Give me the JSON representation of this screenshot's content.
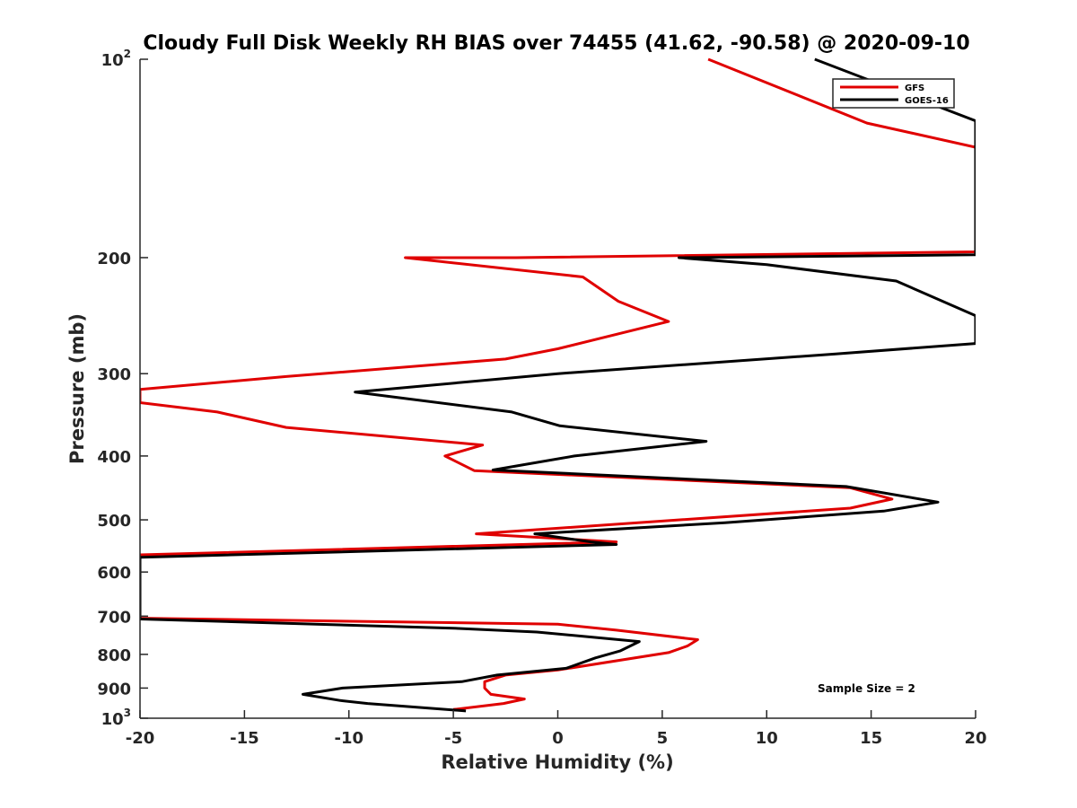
{
  "chart_data": {
    "type": "line",
    "title": "Cloudy Full Disk Weekly RH BIAS over 74455 (41.62, -90.58) @ 2020-09-10",
    "xlabel": "Relative Humidity (%)",
    "ylabel": "Pressure (mb)",
    "xlim": [
      -20,
      20
    ],
    "ylim": [
      100,
      1000
    ],
    "y_scale": "log",
    "y_reversed": true,
    "x_ticks": [
      {
        "value": -20,
        "label": "-20"
      },
      {
        "value": -15,
        "label": "-15"
      },
      {
        "value": -10,
        "label": "-10"
      },
      {
        "value": -5,
        "label": "-5"
      },
      {
        "value": 0,
        "label": "0"
      },
      {
        "value": 5,
        "label": "5"
      },
      {
        "value": 10,
        "label": "10"
      },
      {
        "value": 15,
        "label": "15"
      },
      {
        "value": 20,
        "label": "20"
      }
    ],
    "y_ticks": [
      {
        "value": 100,
        "base": "10",
        "exp": "2"
      },
      {
        "value": 200,
        "base": "200",
        "exp": ""
      },
      {
        "value": 300,
        "base": "300",
        "exp": ""
      },
      {
        "value": 400,
        "base": "400",
        "exp": ""
      },
      {
        "value": 500,
        "base": "500",
        "exp": ""
      },
      {
        "value": 600,
        "base": "600",
        "exp": ""
      },
      {
        "value": 700,
        "base": "700",
        "exp": ""
      },
      {
        "value": 800,
        "base": "800",
        "exp": ""
      },
      {
        "value": 900,
        "base": "900",
        "exp": ""
      },
      {
        "value": 1000,
        "base": "10",
        "exp": "3"
      }
    ],
    "grid": false,
    "legend_position": "top-right",
    "series": [
      {
        "name": "GFS",
        "color": "#e00000",
        "points": [
          [
            7.2,
            100
          ],
          [
            14.8,
            125
          ],
          [
            20,
            136
          ],
          [
            20,
            196
          ],
          [
            -2,
            200
          ],
          [
            -7.3,
            200
          ],
          [
            1.2,
            214
          ],
          [
            2.9,
            233
          ],
          [
            5.3,
            250
          ],
          [
            0,
            275
          ],
          [
            -2.5,
            285
          ],
          [
            -13,
            303
          ],
          [
            -20,
            317
          ],
          [
            -20,
            332
          ],
          [
            -16.3,
            343
          ],
          [
            -13,
            362
          ],
          [
            -3.6,
            385
          ],
          [
            -5.4,
            400
          ],
          [
            -4,
            421
          ],
          [
            14,
            447
          ],
          [
            16,
            465
          ],
          [
            14,
            480
          ],
          [
            -3.9,
            525
          ],
          [
            2.8,
            540
          ],
          [
            -20,
            565
          ],
          [
            -20,
            705
          ],
          [
            0,
            720
          ],
          [
            2.8,
            735
          ],
          [
            6.7,
            760
          ],
          [
            6.2,
            777
          ],
          [
            5.3,
            795
          ],
          [
            0,
            845
          ],
          [
            -2.5,
            860
          ],
          [
            -3.5,
            880
          ],
          [
            -3.5,
            900
          ],
          [
            -3.2,
            920
          ],
          [
            -1.6,
            935
          ],
          [
            -2.6,
            950
          ],
          [
            -5,
            970
          ]
        ]
      },
      {
        "name": "GOES-16",
        "color": "#000000",
        "points": [
          [
            12.3,
            100
          ],
          [
            20,
            124
          ],
          [
            20,
            198
          ],
          [
            5.8,
            200
          ],
          [
            10,
            205
          ],
          [
            16.2,
            217
          ],
          [
            20,
            245
          ],
          [
            20,
            270
          ],
          [
            13.3,
            280
          ],
          [
            0,
            300
          ],
          [
            -9.7,
            320
          ],
          [
            -2.2,
            343
          ],
          [
            0.1,
            360
          ],
          [
            7.1,
            380
          ],
          [
            0.8,
            400
          ],
          [
            -3.1,
            420
          ],
          [
            13.8,
            445
          ],
          [
            18.2,
            470
          ],
          [
            15.6,
            485
          ],
          [
            8,
            505
          ],
          [
            -1.1,
            525
          ],
          [
            1.6,
            540
          ],
          [
            2.8,
            545
          ],
          [
            -20,
            570
          ],
          [
            -20,
            707
          ],
          [
            -5,
            730
          ],
          [
            -1,
            740
          ],
          [
            3.9,
            765
          ],
          [
            3,
            790
          ],
          [
            1.8,
            810
          ],
          [
            0.4,
            840
          ],
          [
            -2.9,
            860
          ],
          [
            -4.6,
            880
          ],
          [
            -10.3,
            900
          ],
          [
            -12.2,
            920
          ],
          [
            -10.4,
            940
          ],
          [
            -9.1,
            950
          ],
          [
            -4.4,
            975
          ]
        ]
      }
    ],
    "annotations": [
      "Sample Size = 2"
    ]
  }
}
